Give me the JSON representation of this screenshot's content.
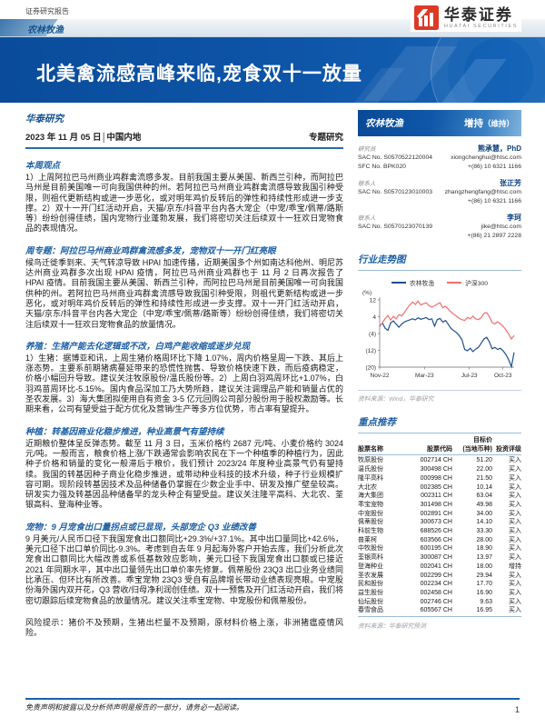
{
  "page": {
    "report_type": "证券研究报告",
    "sector_tag": "农林牧渔",
    "brand": {
      "name": "华泰证券",
      "name_en": "HUATAI SECURITIES"
    },
    "title": "北美禽流感高峰来临,宠食双十一放量",
    "research_label": "华泰研究",
    "date_line": "2023 年 11 月 05 日│中国内地",
    "report_category": "专题研究",
    "footer_note": "免责声明和披露以及分析师声明是报告的一部分，请务必一起阅读。",
    "page_number": "1"
  },
  "sections": [
    {
      "heading": "本周观点",
      "body": "1）上周阿拉巴马州商业鸡群禽流感多发。目前我国主要从美国、新西兰引种，而阿拉巴马州是目前美国唯一可向我国供种的州。若阿拉巴马州商业鸡群禽流感导致我国引种受限，则祖代更新结构或进一步恶化，或对明年鸡价反转后的弹性和持续性形成进一步支撑。2）双十一开门红活动开启，天猫/京东/抖音平台内各大宠企（中宠/乖宝/佩蒂/路斯等）纷纷创得佳绩，国内宠物行业蓬勃发展，我们将密切关注后续双十一狂欢日宠物食品的表现情况。"
    },
    {
      "heading": "周专题：阿拉巴马州商业鸡群禽流感多发，宠物双十一开门红亮眼",
      "body": "候鸟迁徙季到来、天气转凉导致 HPAI 加速传播，近期美国多个州如南达科他州、明尼苏达州商业鸡群多次出现 HPAI 疫情，阿拉巴马州商业鸡群也于 11 月 2 日再次报告了 HPAI 疫情。目前我国主要从美国、新西兰引种，而阿拉巴马州是目前美国唯一可向我国供种的州。若阿拉巴马州商业鸡群禽流感导致我国引种受限，则祖代更新结构或进一步恶化，或对明年鸡价反转后的弹性和持续性形成进一步支撑。双十一开门红活动开启，天猫/京东/抖音平台内各大宠企（中宠/乖宝/佩蒂/路斯等）纷纷创得佳绩，我们将密切关注后续双十一狂欢日宠物食品的放量情况。"
    },
    {
      "heading": "养殖：生猪产能去化逻辑或不改，白鸡产能收缩或逐步兑现",
      "body": "1）生猪：据博亚和讯，上周生猪价格周环比下降 1.07%，周内价格呈周一下跌、其后上涨态势。主要系前期猪病蔓延带来的恐慌性抛售、导致价格快速下跌，而后疫病稳定，价格小幅回升导致。建议关注牧原股份/温氏股份等。2）上周白羽鸡周环比+1.07%，白羽鸡苗周环比-5.15%。国内食品深加工乃大势所趋，建议关注调理品产能和销量占优的圣农发展。3）海大集团拟使用自有资金 3-5 亿元回购公司部分股份用于股权激励等。长期来看，公司有望受益于配方优化及营销/生产等多方位优势，市占率有望提升。"
    },
    {
      "heading": "种植：转基因商业化稳步推进，种业高景气有望持续",
      "body": "近期粮价整体呈反弹态势。截至 11 月 3 日，玉米价格约 2687 元/吨、小麦价格约 3024 元/吨。一般而言，粮食价格上涨/下跌通常会影响农民在下一个种植季的种植行为，因此种子价格和销量的变化一般滞后于粮价，我们预计 2023/24 年度种业高景气仍有望持续。我国的转基因种子商业化稳步推进，或带动种业科技的技术升级，种子行业规模扩容可期。现阶段转基因技术及品种储备仍掌握在少数企业手中、研发及推广壁垒较高。研发实力强及转基因品种储备早的龙头种企有望受益。建议关注隆平高科、大北农、荃银高科、登海种业等。"
    },
    {
      "heading": "宠物：9 月宠食出口量拐点或已显现，头部宠企 Q3 业绩改善",
      "body": "9 月美元/人民币口径下我国宠食出口额同比+29.3%/+37.1%。其中出口量同比+42.6%，美元口径下出口单价同比-9.3%。考虑到自去年 9 月起海外客户开始去库，我们分析此次宠食出口额同比大幅改善或系低基数效应影响，美元口径下我国宠食出口额或已接近 2021 年同期水平，其中出口量领先出口单价率先修复。佩蒂股份 23Q3 出口业务业绩同比承压、但环比有所改善。乖宝宠物 23Q3 受自有品牌增长带动业绩表现亮眼。中宠股份海外国内双开花，Q3 营收/归母净利润创佳绩。双十一预售及开门红活动开启，我们将密切跟踪后续宠物食品的放量情况。建议关注乖宝宠物、中宠股份和佩蒂股份。"
    }
  ],
  "risk_note": "风险提示：猪价不及预期，生猪出栏量不及预期，原材料价格上涨，非洲猪瘟疫情风险。",
  "sidebar": {
    "sector": "农林牧渔",
    "rating": "增持",
    "rating_suffix": "（维持）",
    "analysts": [
      {
        "role": "研究员",
        "name": "熊承慧，PhD",
        "rows": [
          [
            "SAC No. S0570522120004",
            "xiongchenghui@htsc.com"
          ],
          [
            "SFC No. BPK020",
            "+(86) 10 6321 1166"
          ]
        ]
      },
      {
        "role": "联系人",
        "name": "张正芳",
        "rows": [
          [
            "SAC No. S0570123010003",
            "zhangzhengfang@htsc.com"
          ],
          [
            "",
            "+(86) 10 6321 1166"
          ]
        ]
      },
      {
        "role": "联系人",
        "name": "李珂",
        "rows": [
          [
            "SAC No. S0570123070139",
            "jike@htsc.com"
          ],
          [
            "",
            "+(86) 21 2897 2228"
          ]
        ]
      }
    ],
    "chart_title": "行业走势图",
    "chart_source": "资料来源：Wind，华泰研究",
    "recommend_title": "重点推荐",
    "table": {
      "header_top": "目标价",
      "headers": [
        "股票名称",
        "股票代码",
        "(当地币种)",
        "投资评级"
      ],
      "rows": [
        [
          "牧原股份",
          "002714 CH",
          "51.20",
          "买入"
        ],
        [
          "温氏股份",
          "300498 CH",
          "22.00",
          "买入"
        ],
        [
          "隆平高科",
          "000998 CH",
          "21.50",
          "买入"
        ],
        [
          "大北农",
          "002385 CH",
          "10.14",
          "买入"
        ],
        [
          "海大集团",
          "002311 CH",
          "63.04",
          "买入"
        ],
        [
          "乖宝宠物",
          "301498 CH",
          "49.98",
          "买入"
        ],
        [
          "中宠股份",
          "002891 CH",
          "34.00",
          "买入"
        ],
        [
          "佩蒂股份",
          "300673 CH",
          "14.10",
          "买入"
        ],
        [
          "科前生物",
          "688526 CH",
          "33.30",
          "买入"
        ],
        [
          "普莱柯",
          "603566 CH",
          "28.00",
          "买入"
        ],
        [
          "中牧股份",
          "600195 CH",
          "18.90",
          "买入"
        ],
        [
          "荃银高科",
          "300087 CH",
          "13.97",
          "买入"
        ],
        [
          "登海种业",
          "002041 CH",
          "18.00",
          "增持"
        ],
        [
          "圣农发展",
          "002299 CH",
          "29.94",
          "买入"
        ],
        [
          "民和股份",
          "002234 CH",
          "17.70",
          "买入"
        ],
        [
          "益生股份",
          "002458 CH",
          "16.90",
          "买入"
        ],
        [
          "仙坛股份",
          "002746 CH",
          "9.63",
          "买入"
        ],
        [
          "春雪食品",
          "605567 CH",
          "16.95",
          "买入"
        ]
      ],
      "source": "资料来源：华泰研究预测"
    }
  },
  "chart_data": {
    "type": "line",
    "title": "行业走势图",
    "unit": "(%)",
    "ylim": [
      -20,
      12
    ],
    "yticks": [
      12,
      4,
      -4,
      -12,
      -20
    ],
    "ytick_labels": [
      "12",
      "4",
      "(4)",
      "(12)",
      "(20)"
    ],
    "xtick_labels": [
      "Nov-22",
      "Mar-23",
      "Jul-23",
      "Oct-23"
    ],
    "xtick_positions": [
      0,
      0.333,
      0.667,
      0.917
    ],
    "legend_position": "top",
    "series": [
      {
        "name": "农林牧渔",
        "color": "#1f4e8f",
        "values": [
          -0.5,
          1.0,
          -1.5,
          -2.5,
          1.0,
          2.0,
          0.5,
          -1.0,
          0.5,
          1.5,
          2.0,
          2.5,
          3.0,
          2.5,
          3.5,
          2.8,
          3.2,
          3.6,
          2.6,
          3.0,
          -0.5,
          2.6,
          3.2,
          1.4,
          2.2,
          0.4,
          -1.6,
          -2.6,
          -3.6,
          -5.0,
          -7.0,
          -11.6,
          -12.2,
          -11.0,
          -12.6,
          -11.4,
          -10.6,
          -8.6,
          -6.6,
          -5.8,
          -8.0,
          -11.2,
          -10.6,
          -11.6,
          -11.0,
          -12.2,
          -14.0,
          -16.5,
          -19.8,
          -13.0
        ]
      },
      {
        "name": "沪深300",
        "color": "#f26d6d",
        "values": [
          -0.8,
          1.2,
          3.0,
          4.6,
          2.4,
          4.2,
          3.0,
          5.0,
          4.4,
          6.0,
          8.0,
          9.6,
          11.0,
          9.8,
          11.4,
          9.6,
          10.2,
          10.6,
          9.2,
          8.6,
          9.2,
          10.0,
          10.6,
          8.2,
          9.0,
          7.6,
          6.2,
          5.2,
          4.2,
          3.2,
          2.6,
          2.2,
          3.6,
          3.0,
          4.2,
          3.0,
          2.6,
          3.6,
          5.6,
          6.0,
          4.0,
          1.2,
          0.6,
          1.6,
          0.6,
          -0.6,
          -2.2,
          -4.2,
          -6.6,
          -5.0
        ]
      }
    ],
    "source": "资料来源：Wind，华泰研究"
  }
}
